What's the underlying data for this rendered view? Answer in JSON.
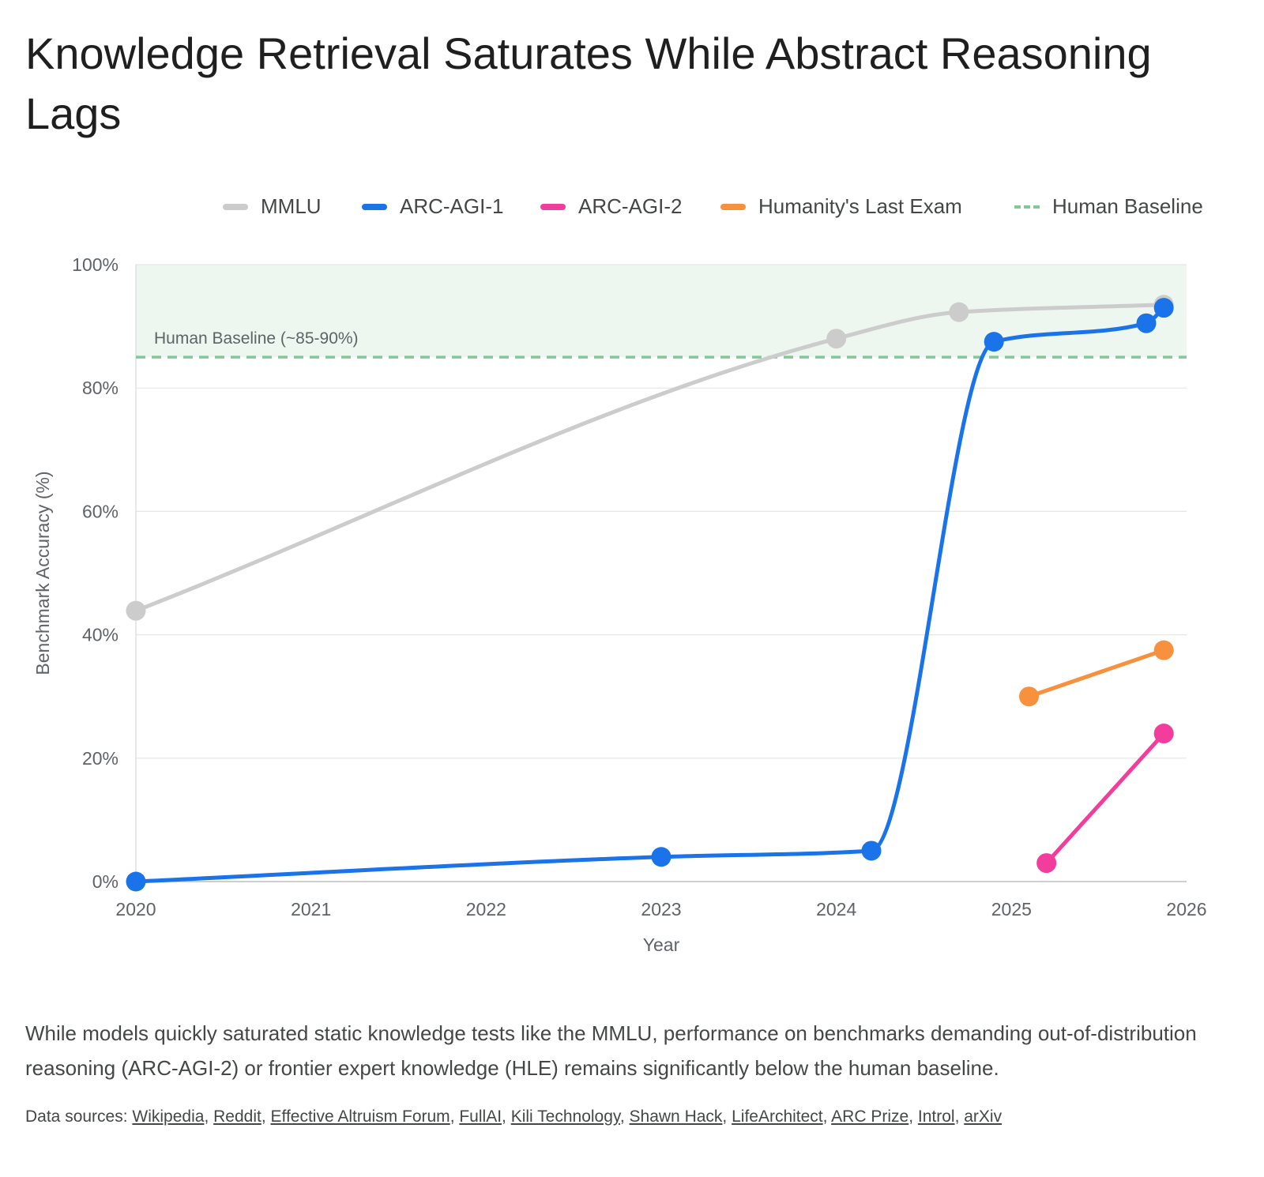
{
  "page": {
    "title": "Knowledge Retrieval Saturates While Abstract Reasoning Lags",
    "description": "While models quickly saturated static knowledge tests like the MMLU, performance on benchmarks demanding out-of-distribution reasoning (ARC-AGI-2) or frontier expert knowledge (HLE) remains significantly below the human baseline.",
    "sources_label": "Data sources:",
    "sources": [
      "Wikipedia",
      "Reddit",
      "Effective Altruism Forum",
      "FullAI",
      "Kili Technology",
      "Shawn Hack",
      "LifeArchitect",
      "ARC Prize",
      "Introl",
      "arXiv"
    ]
  },
  "legend": [
    {
      "label": "MMLU",
      "color": "#cccccc",
      "style": "solid"
    },
    {
      "label": "ARC-AGI-1",
      "color": "#1a73e8",
      "style": "solid"
    },
    {
      "label": "ARC-AGI-2",
      "color": "#f23d9d",
      "style": "solid"
    },
    {
      "label": "Humanity's Last Exam",
      "color": "#f8913d",
      "style": "solid"
    },
    {
      "label": "Human Baseline",
      "color": "#81c995",
      "style": "dashed"
    }
  ],
  "chart_data": {
    "type": "line",
    "title": "Knowledge Retrieval Saturates While Abstract Reasoning Lags",
    "xlabel": "Year",
    "ylabel": "Benchmark Accuracy (%)",
    "xlim": [
      2020,
      2026
    ],
    "ylim": [
      0,
      100
    ],
    "x_ticks": [
      "2020",
      "2021",
      "2022",
      "2023",
      "2024",
      "2025",
      "2026"
    ],
    "y_ticks": [
      "0%",
      "20%",
      "40%",
      "60%",
      "80%",
      "100%"
    ],
    "grid": true,
    "legend_position": "top-right",
    "series": [
      {
        "name": "MMLU",
        "color": "#cccccc",
        "points": [
          [
            2020.0,
            43.9
          ],
          [
            2024.0,
            88.0
          ],
          [
            2024.7,
            92.3
          ],
          [
            2025.87,
            93.5
          ]
        ]
      },
      {
        "name": "ARC-AGI-1",
        "color": "#1a73e8",
        "points": [
          [
            2020.0,
            0
          ],
          [
            2023.0,
            4.0
          ],
          [
            2024.2,
            5.0
          ],
          [
            2024.9,
            87.5
          ],
          [
            2025.77,
            90.5
          ],
          [
            2025.87,
            93.0
          ]
        ]
      },
      {
        "name": "ARC-AGI-2",
        "color": "#f23d9d",
        "points": [
          [
            2025.2,
            3.0
          ],
          [
            2025.87,
            24.0
          ]
        ]
      },
      {
        "name": "Humanity's Last Exam",
        "color": "#f8913d",
        "points": [
          [
            2025.1,
            30.0
          ],
          [
            2025.87,
            37.5
          ]
        ]
      }
    ],
    "reference_band": {
      "name": "Human Baseline",
      "label": "Human Baseline (~85-90%)",
      "from": 85,
      "to": 100,
      "line": 85,
      "color": "#81c995"
    }
  }
}
